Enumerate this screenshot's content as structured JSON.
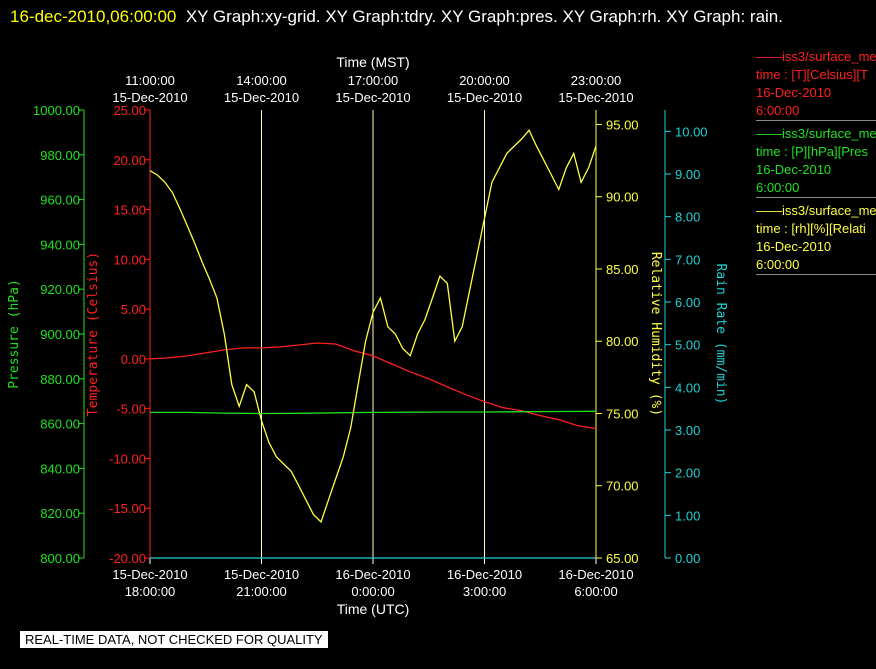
{
  "header": {
    "timestamp": "16-dec-2010,06:00:00",
    "graphs": "XY Graph:xy-grid.  XY Graph:tdry.  XY Graph:pres.  XY Graph:rh.  XY Graph: rain."
  },
  "legend": [
    {
      "name": "iss3/surface_me",
      "line2": "time : [T][Celsius][T",
      "line3": "16-Dec-2010",
      "line4": "6:00:00",
      "color": "#ff2020"
    },
    {
      "name": "iss3/surface_me",
      "line2": "time : [P][hPa][Pres",
      "line3": "16-Dec-2010",
      "line4": "6:00:00",
      "color": "#20e020"
    },
    {
      "name": "iss3/surface_me",
      "line2": "time : [rh][%][Relati",
      "line3": "16-Dec-2010",
      "line4": "6:00:00",
      "color": "#ffff40"
    }
  ],
  "notice": "REAL-TIME DATA, NOT CHECKED FOR QUALITY",
  "chart_data": {
    "type": "line",
    "top_axis": {
      "title": "Time (MST)",
      "ticks": [
        {
          "l1": "11:00:00",
          "l2": "15-Dec-2010"
        },
        {
          "l1": "14:00:00",
          "l2": "15-Dec-2010"
        },
        {
          "l1": "17:00:00",
          "l2": "15-Dec-2010"
        },
        {
          "l1": "20:00:00",
          "l2": "15-Dec-2010"
        },
        {
          "l1": "23:00:00",
          "l2": "15-Dec-2010"
        }
      ]
    },
    "bottom_axis": {
      "title": "Time (UTC)",
      "range": [
        "15-Dec-2010 18:00:00",
        "16-Dec-2010 06:00:00"
      ],
      "ticks": [
        {
          "l1": "15-Dec-2010",
          "l2": "18:00:00"
        },
        {
          "l1": "15-Dec-2010",
          "l2": "21:00:00"
        },
        {
          "l1": "16-Dec-2010",
          "l2": "0:00:00"
        },
        {
          "l1": "16-Dec-2010",
          "l2": "3:00:00"
        },
        {
          "l1": "16-Dec-2010",
          "l2": "6:00:00"
        }
      ]
    },
    "axes": {
      "pressure": {
        "label": "Pressure (hPa)",
        "color": "#20e020",
        "ylim": [
          800,
          1000
        ],
        "ticks": [
          "800.00",
          "820.00",
          "840.00",
          "860.00",
          "880.00",
          "900.00",
          "920.00",
          "940.00",
          "960.00",
          "980.00",
          "1000.00"
        ]
      },
      "temperature": {
        "label": "Temperature (Celsius)",
        "color": "#ff2020",
        "ylim": [
          -20,
          25
        ],
        "ticks": [
          "-20.00",
          "-15.00",
          "-10.00",
          "-5.00",
          "0.00",
          "5.00",
          "10.00",
          "15.00",
          "20.00",
          "25.00"
        ]
      },
      "humidity": {
        "label": "Relative Humidity (%)",
        "color": "#ffff40",
        "ylim": [
          65,
          96
        ],
        "ticks": [
          "65.00",
          "70.00",
          "75.00",
          "80.00",
          "85.00",
          "90.00",
          "95.00"
        ]
      },
      "rain": {
        "label": "Rain Rate (mm/min)",
        "color": "#20d0d0",
        "ylim": [
          0,
          10.5
        ],
        "ticks": [
          "0.00",
          "1.00",
          "2.00",
          "3.00",
          "4.00",
          "5.00",
          "6.00",
          "7.00",
          "8.00",
          "9.00",
          "10.00"
        ]
      }
    },
    "xlim": [
      0,
      12
    ],
    "grid": "vertical at 3-hour ticks",
    "series": [
      {
        "axis": "temperature",
        "color": "#ff2020",
        "x": [
          0,
          0.5,
          1,
          1.5,
          2,
          2.5,
          3,
          3.5,
          4,
          4.5,
          5,
          5.5,
          6,
          6.5,
          7,
          7.5,
          8,
          8.5,
          9,
          9.5,
          10,
          10.5,
          11,
          11.5,
          12
        ],
        "y": [
          0.0,
          0.1,
          0.3,
          0.6,
          0.9,
          1.1,
          1.1,
          1.2,
          1.4,
          1.6,
          1.5,
          0.8,
          0.3,
          -0.5,
          -1.3,
          -2.0,
          -2.8,
          -3.6,
          -4.3,
          -4.9,
          -5.2,
          -5.7,
          -6.1,
          -6.7,
          -7.0
        ]
      },
      {
        "axis": "pressure",
        "color": "#20e020",
        "x": [
          0,
          1,
          2,
          3,
          4,
          5,
          6,
          7,
          8,
          9,
          10,
          11,
          12
        ],
        "y": [
          865.0,
          865.0,
          864.7,
          864.5,
          864.6,
          864.8,
          865.0,
          865.1,
          865.2,
          865.2,
          865.3,
          865.4,
          865.5
        ]
      },
      {
        "axis": "humidity",
        "color": "#ffff40",
        "x": [
          0,
          0.2,
          0.4,
          0.6,
          0.8,
          1.0,
          1.2,
          1.4,
          1.6,
          1.8,
          2.0,
          2.2,
          2.4,
          2.6,
          2.8,
          3.0,
          3.2,
          3.4,
          3.6,
          3.8,
          4.0,
          4.2,
          4.4,
          4.6,
          4.8,
          5.0,
          5.2,
          5.4,
          5.6,
          5.8,
          6.0,
          6.2,
          6.4,
          6.6,
          6.8,
          7.0,
          7.2,
          7.4,
          7.6,
          7.8,
          8.0,
          8.2,
          8.4,
          8.6,
          8.8,
          9.0,
          9.2,
          9.4,
          9.6,
          9.8,
          10.0,
          10.2,
          10.4,
          10.6,
          10.8,
          11.0,
          11.2,
          11.4,
          11.6,
          11.8,
          12.0
        ],
        "y": [
          91.8,
          91.5,
          91.0,
          90.3,
          89.2,
          88.0,
          86.8,
          85.5,
          84.3,
          83.0,
          80.5,
          77.0,
          75.5,
          77.0,
          76.5,
          74.5,
          73.0,
          72.0,
          71.5,
          71.0,
          70.0,
          69.0,
          68.0,
          67.5,
          69.0,
          70.5,
          72.0,
          74.0,
          77.0,
          80.0,
          82.0,
          83.0,
          81.0,
          80.5,
          79.5,
          79.0,
          80.5,
          81.5,
          83.0,
          84.5,
          84.0,
          80.0,
          81.0,
          83.5,
          86.0,
          88.5,
          91.0,
          92.0,
          93.0,
          93.5,
          94.0,
          94.6,
          93.5,
          92.5,
          91.5,
          90.5,
          92.0,
          93.0,
          91.0,
          92.0,
          93.5
        ]
      },
      {
        "axis": "rain",
        "color": "#20d0d0",
        "x": [
          0,
          12
        ],
        "y": [
          0,
          0
        ]
      }
    ]
  }
}
